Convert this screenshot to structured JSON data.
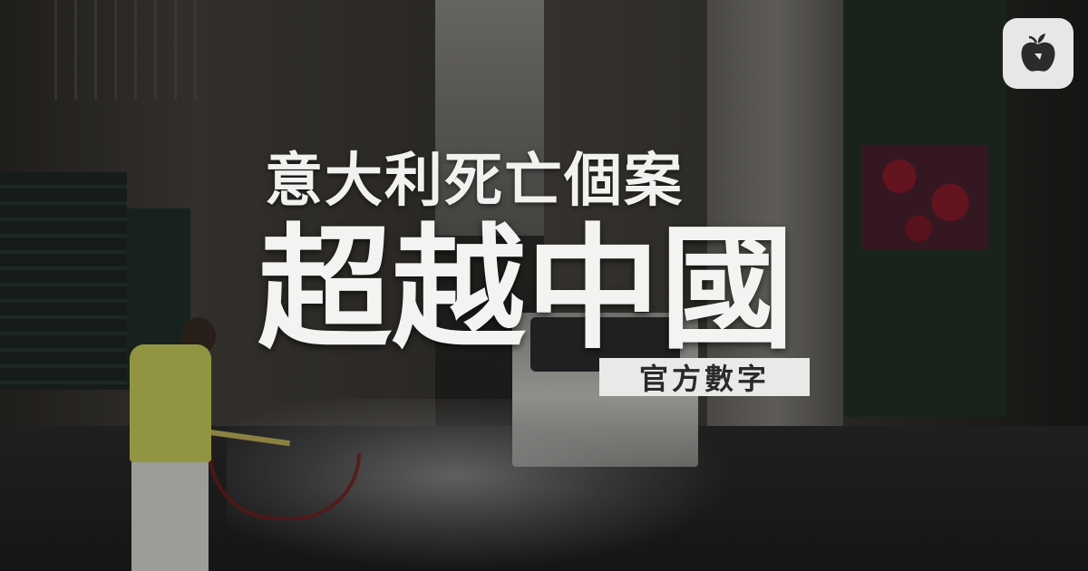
{
  "headline": {
    "line1": "意大利死亡個案",
    "line2": "超越中國",
    "badge": "官方數字"
  },
  "logo": {
    "icon": "apple-logo-icon",
    "color": "#2b2b2b",
    "background": "#e7e7e7"
  },
  "photo": {
    "description_icon": "street-disinfection-photo"
  }
}
